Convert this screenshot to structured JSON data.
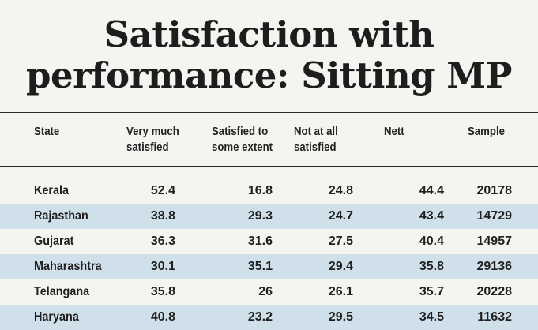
{
  "title": {
    "line1": "Satisfaction with",
    "line2": "performance: Sitting MP"
  },
  "table": {
    "headers": {
      "state": "State",
      "very_much_1": "Very much",
      "very_much_2": "satisfied",
      "some_extent_1": "Satisfied to",
      "some_extent_2": "some extent",
      "not_at_all_1": "Not at all",
      "not_at_all_2": "satisfied",
      "nett": "Nett",
      "sample": "Sample"
    },
    "rows": [
      {
        "state": "Kerala",
        "very_much": "52.4",
        "some_extent": "16.8",
        "not_at_all": "24.8",
        "nett": "44.4",
        "sample": "20178"
      },
      {
        "state": "Rajasthan",
        "very_much": "38.8",
        "some_extent": "29.3",
        "not_at_all": "24.7",
        "nett": "43.4",
        "sample": "14729"
      },
      {
        "state": "Gujarat",
        "very_much": "36.3",
        "some_extent": "31.6",
        "not_at_all": "27.5",
        "nett": "40.4",
        "sample": "14957"
      },
      {
        "state": "Maharashtra",
        "very_much": "30.1",
        "some_extent": "35.1",
        "not_at_all": "29.4",
        "nett": "35.8",
        "sample": "29136"
      },
      {
        "state": "Telangana",
        "very_much": "35.8",
        "some_extent": "26",
        "not_at_all": "26.1",
        "nett": "35.7",
        "sample": "20228"
      },
      {
        "state": "Haryana",
        "very_much": "40.8",
        "some_extent": "23.2",
        "not_at_all": "29.5",
        "nett": "34.5",
        "sample": "11632"
      }
    ]
  },
  "colors": {
    "background": "#f4f5f0",
    "row_stripe": "#cfe0ea",
    "text": "#1a1a1a"
  }
}
